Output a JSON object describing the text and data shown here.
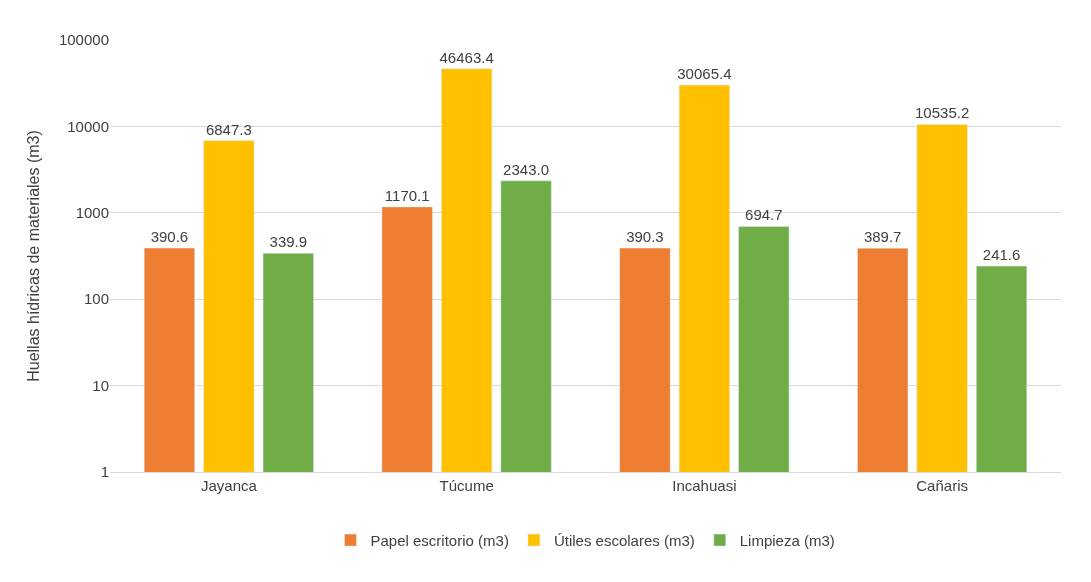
{
  "chart_data": {
    "type": "bar",
    "ylabel": "Huellas hídricas de materiales (m3)",
    "categories": [
      "Jayanca",
      "Túcume",
      "Incahuasi",
      "Cañaris"
    ],
    "series": [
      {
        "name": "Papel escritorio (m3)",
        "color": "#ed7d31",
        "values": [
          390.6,
          1170.1,
          390.3,
          389.7
        ],
        "value_labels": [
          "390.6",
          "1170.1",
          "390.3",
          "389.7"
        ]
      },
      {
        "name": "Útiles escolares (m3)",
        "color": "#ffc000",
        "values": [
          6847.3,
          46463.4,
          30065.4,
          10535.2
        ],
        "value_labels": [
          "6847.3",
          "46463.4",
          "30065.4",
          "10535.2"
        ]
      },
      {
        "name": "Limpieza (m3)",
        "color": "#70ad47",
        "values": [
          339.9,
          2343.0,
          694.7,
          241.6
        ],
        "value_labels": [
          "339.9",
          "2343.0",
          "694.7",
          "241.6"
        ]
      }
    ],
    "log": true,
    "ylim": [
      1,
      100000
    ],
    "yticks": [
      1,
      10,
      100,
      1000,
      10000,
      100000
    ],
    "grid": "y",
    "legend": "bottom"
  }
}
